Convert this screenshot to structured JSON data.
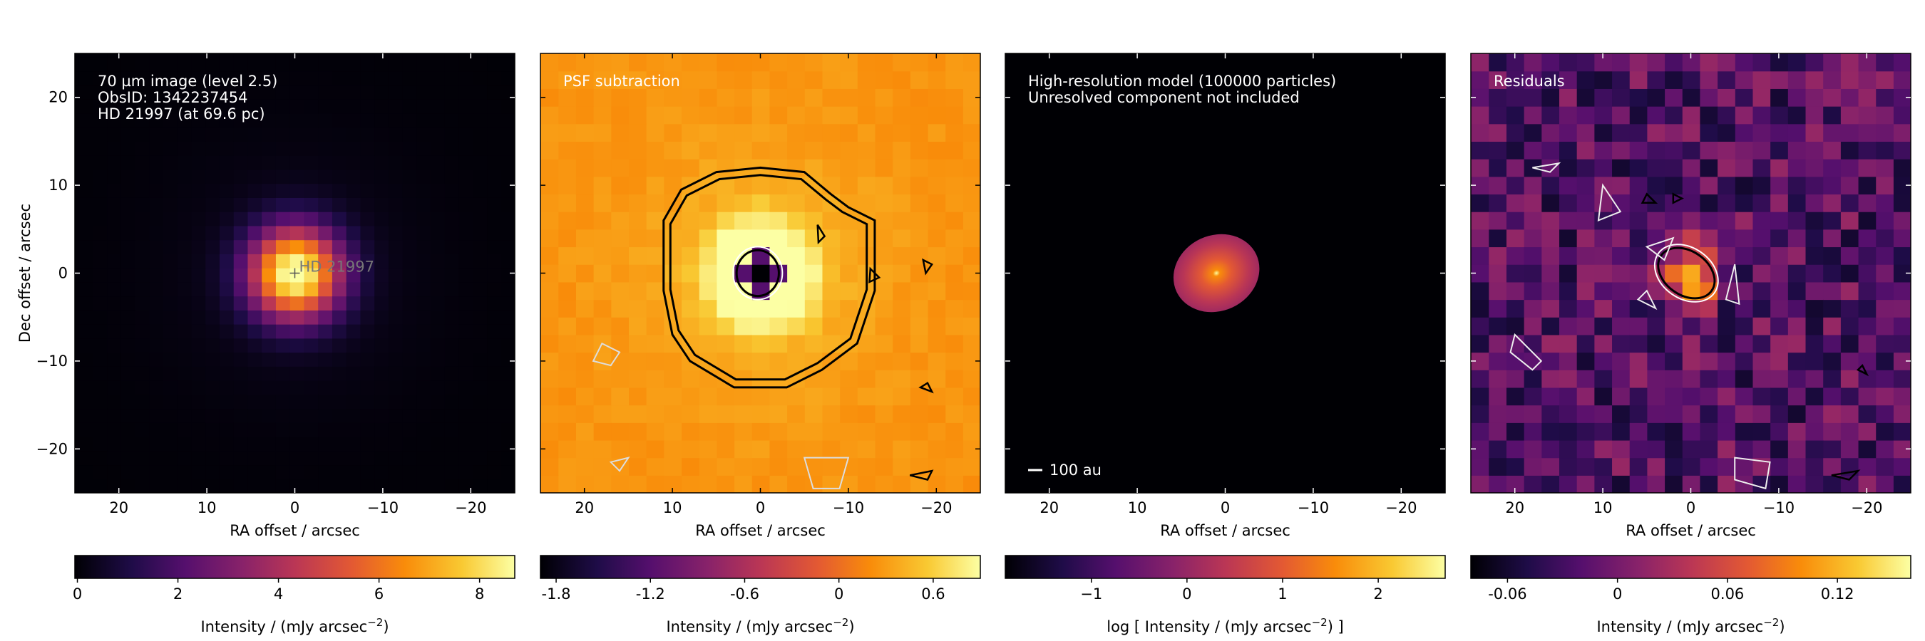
{
  "chart_data": [
    {
      "type": "heatmap",
      "title": "",
      "annotations": [
        "70 µm image (level 2.5)",
        "ObsID: 1342237454",
        "HD 21997 (at 69.6 pc)"
      ],
      "star_label": "HD 21997",
      "xlabel": "RA offset / arcsec",
      "ylabel": "Dec offset / arcsec",
      "xlim": [
        25,
        -25
      ],
      "ylim": [
        -25,
        25
      ],
      "xticks": [
        20,
        10,
        0,
        -10,
        -20
      ],
      "xtick_labels": [
        "20",
        "10",
        "0",
        "−10",
        "−20"
      ],
      "yticks": [
        20,
        10,
        0,
        -10,
        -20
      ],
      "ytick_labels": [
        "20",
        "10",
        "0",
        "−10",
        "−20"
      ],
      "source": {
        "x": 0,
        "y": 0,
        "peak": 8.8,
        "sigma_arcsec": 3.6
      },
      "colorbar": {
        "cmap": "inferno",
        "range": [
          -0.05,
          8.7
        ],
        "ticks": [
          0,
          2,
          4,
          6,
          8
        ],
        "tick_labels": [
          "0",
          "2",
          "4",
          "6",
          "8"
        ],
        "label_pre": "Intensity / (mJy arcsec",
        "label_sup": "−2",
        "label_post": ")"
      }
    },
    {
      "type": "heatmap",
      "title": "",
      "annotations": [
        "PSF subtraction"
      ],
      "xlabel": "RA offset / arcsec",
      "xlim": [
        25,
        -25
      ],
      "ylim": [
        -25,
        25
      ],
      "xticks": [
        20,
        10,
        0,
        -10,
        -20
      ],
      "xtick_labels": [
        "20",
        "10",
        "0",
        "−10",
        "−20"
      ],
      "residual_ring": {
        "peak": 0.8,
        "ring_radius_arcsec": 4.0,
        "center_min": -1.9,
        "background": 0.25
      },
      "contours": {
        "levels": [
          "black outer pair",
          "white inner"
        ]
      },
      "colorbar": {
        "cmap": "inferno",
        "range": [
          -1.9,
          0.9
        ],
        "ticks": [
          -1.8,
          -1.2,
          -0.6,
          0,
          0.6
        ],
        "tick_labels": [
          "-1.8",
          "-1.2",
          "-0.6",
          "0",
          "0.6"
        ],
        "label_pre": "Intensity / (mJy arcsec",
        "label_sup": "−2",
        "label_post": ")"
      }
    },
    {
      "type": "heatmap",
      "title": "",
      "annotations": [
        "High-resolution model (100000 particles)",
        "Unresolved component not included"
      ],
      "scale_bar_label": "100 au",
      "xlabel": "RA offset / arcsec",
      "xlim": [
        25,
        -25
      ],
      "ylim": [
        -25,
        25
      ],
      "xticks": [
        20,
        10,
        0,
        -10,
        -20
      ],
      "xtick_labels": [
        "20",
        "10",
        "0",
        "−10",
        "−20"
      ],
      "disc": {
        "x": 1,
        "y": 0,
        "rx_arcsec": 5.0,
        "ry_arcsec": 4.3
      },
      "colorbar": {
        "cmap": "inferno",
        "range": [
          -1.9,
          2.7
        ],
        "ticks": [
          -1,
          0,
          1,
          2
        ],
        "tick_labels": [
          "−1",
          "0",
          "1",
          "2"
        ],
        "label_pre": "log [ Intensity / (mJy arcsec",
        "label_sup": "−2",
        "label_post": ") ]"
      }
    },
    {
      "type": "heatmap",
      "title": "",
      "annotations": [
        "Residuals"
      ],
      "xlabel": "RA offset / arcsec",
      "xlim": [
        25,
        -25
      ],
      "ylim": [
        -25,
        25
      ],
      "xticks": [
        20,
        10,
        0,
        -10,
        -20
      ],
      "xtick_labels": [
        "20",
        "10",
        "0",
        "−10",
        "−20"
      ],
      "blob": {
        "x": 0,
        "y": 0,
        "peak": 0.16
      },
      "contours": {
        "levels": [
          "black",
          "white"
        ]
      },
      "colorbar": {
        "cmap": "inferno",
        "range": [
          -0.08,
          0.16
        ],
        "ticks": [
          -0.06,
          0,
          0.06,
          0.12
        ],
        "tick_labels": [
          "-0.06",
          "0",
          "0.06",
          "0.12"
        ],
        "label_pre": "Intensity / (mJy arcsec",
        "label_sup": "−2",
        "label_post": ")"
      }
    }
  ]
}
